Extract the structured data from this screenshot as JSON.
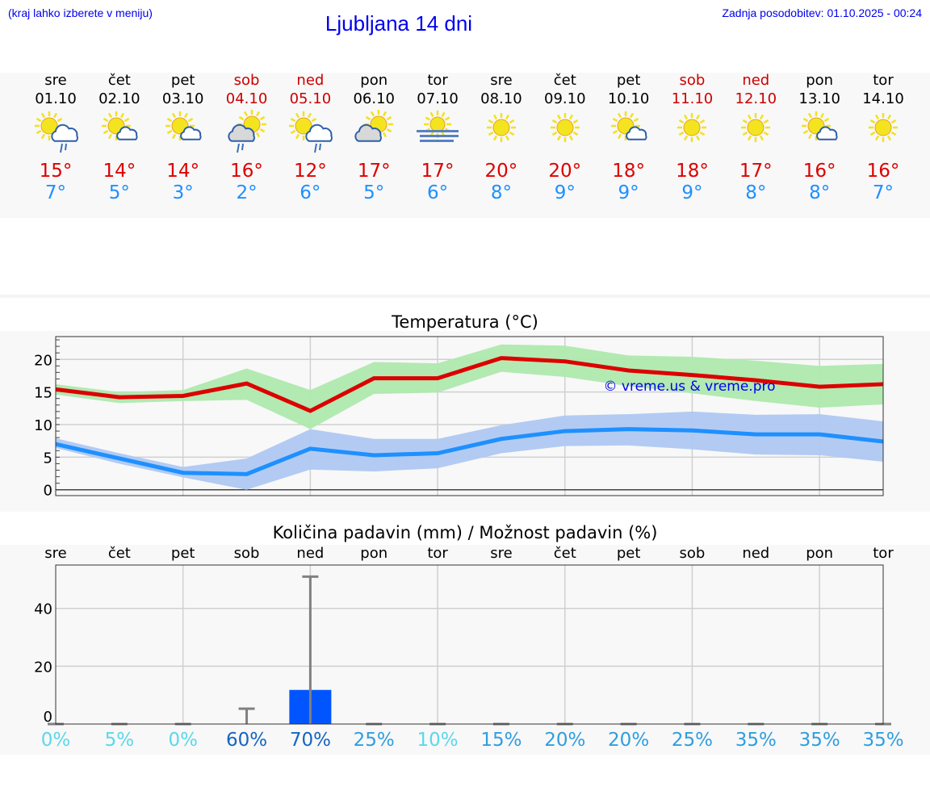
{
  "header": {
    "hint": "(kraj lahko izberete v meniju)",
    "title": "Ljubljana 14 dni",
    "updated": "Zadnja posodobitev: 01.10.2025 - 00:24"
  },
  "days": [
    {
      "name": "sre",
      "date": "01.10",
      "weekend": false,
      "icon": "sun-cloud-rain",
      "max": "15°",
      "min": "7°"
    },
    {
      "name": "čet",
      "date": "02.10",
      "weekend": false,
      "icon": "sun-small-cloud",
      "max": "14°",
      "min": "5°"
    },
    {
      "name": "pet",
      "date": "03.10",
      "weekend": false,
      "icon": "sun-small-cloud",
      "max": "14°",
      "min": "3°"
    },
    {
      "name": "sob",
      "date": "04.10",
      "weekend": true,
      "icon": "grey-cloud-sun-rain",
      "max": "16°",
      "min": "2°"
    },
    {
      "name": "ned",
      "date": "05.10",
      "weekend": true,
      "icon": "sun-cloud-rain",
      "max": "12°",
      "min": "6°"
    },
    {
      "name": "pon",
      "date": "06.10",
      "weekend": false,
      "icon": "grey-cloud-sun",
      "max": "17°",
      "min": "5°"
    },
    {
      "name": "tor",
      "date": "07.10",
      "weekend": false,
      "icon": "sun-fog",
      "max": "17°",
      "min": "6°"
    },
    {
      "name": "sre",
      "date": "08.10",
      "weekend": false,
      "icon": "sun",
      "max": "20°",
      "min": "8°"
    },
    {
      "name": "čet",
      "date": "09.10",
      "weekend": false,
      "icon": "sun",
      "max": "20°",
      "min": "9°"
    },
    {
      "name": "pet",
      "date": "10.10",
      "weekend": false,
      "icon": "sun-small-cloud",
      "max": "18°",
      "min": "9°"
    },
    {
      "name": "sob",
      "date": "11.10",
      "weekend": true,
      "icon": "sun",
      "max": "18°",
      "min": "9°"
    },
    {
      "name": "ned",
      "date": "12.10",
      "weekend": true,
      "icon": "sun",
      "max": "17°",
      "min": "8°"
    },
    {
      "name": "pon",
      "date": "13.10",
      "weekend": false,
      "icon": "sun-small-cloud",
      "max": "16°",
      "min": "8°"
    },
    {
      "name": "tor",
      "date": "14.10",
      "weekend": false,
      "icon": "sun",
      "max": "16°",
      "min": "7°"
    }
  ],
  "colors": {
    "max": "#dd0000",
    "min": "#1e90ff",
    "max_band": "#aee9ae",
    "min_band": "#afc8f2",
    "bar": "#0055ff",
    "whisker": "#808080",
    "pct_low": "#5ad8ea",
    "pct_mid": "#2e9ee0",
    "pct_high": "#1565c0",
    "weekend": "#cc0000"
  },
  "chart_data": [
    {
      "type": "line",
      "title": "Temperatura (°C)",
      "ylim": [
        -0.9,
        23.5
      ],
      "yticks": [
        0,
        5,
        10,
        15,
        20
      ],
      "grid": true,
      "watermark": "© vreme.us & vreme.pro",
      "x": [
        "01.10",
        "02.10",
        "03.10",
        "04.10",
        "05.10",
        "06.10",
        "07.10",
        "08.10",
        "09.10",
        "10.10",
        "11.10",
        "12.10",
        "13.10",
        "14.10"
      ],
      "series": [
        {
          "key": "max",
          "values": [
            15.4,
            14.2,
            14.4,
            16.3,
            12.1,
            17.1,
            17.1,
            20.2,
            19.7,
            18.3,
            17.6,
            16.8,
            15.8,
            16.2
          ],
          "upper": [
            16.2,
            15.0,
            15.3,
            18.6,
            15.3,
            19.6,
            19.4,
            22.3,
            22.1,
            20.6,
            20.4,
            19.8,
            19.0,
            19.3
          ],
          "lower": [
            14.6,
            13.3,
            13.6,
            13.8,
            9.3,
            14.7,
            14.9,
            18.1,
            17.3,
            15.9,
            14.8,
            13.6,
            12.6,
            13.1
          ]
        },
        {
          "key": "min",
          "values": [
            7.0,
            4.8,
            2.6,
            2.4,
            6.3,
            5.3,
            5.6,
            7.8,
            9.0,
            9.3,
            9.1,
            8.5,
            8.5,
            7.4
          ],
          "upper": [
            7.9,
            5.6,
            3.5,
            4.8,
            9.3,
            7.8,
            7.8,
            9.9,
            11.4,
            11.6,
            12.0,
            11.5,
            11.6,
            10.5
          ],
          "lower": [
            6.4,
            4.0,
            1.9,
            0.0,
            3.1,
            2.8,
            3.3,
            5.6,
            6.7,
            6.8,
            6.2,
            5.4,
            5.3,
            4.3
          ]
        }
      ]
    },
    {
      "type": "bar",
      "title": "Količina padavin (mm) / Možnost padavin (%)",
      "ylim": [
        0,
        55
      ],
      "yticks": [
        0,
        20,
        40
      ],
      "grid": true,
      "categories": [
        "sre",
        "čet",
        "pet",
        "sob",
        "ned",
        "pon",
        "tor",
        "sre",
        "čet",
        "pet",
        "sob",
        "ned",
        "pon",
        "tor"
      ],
      "values": [
        0,
        0,
        0,
        0,
        11.8,
        0,
        0,
        0,
        0,
        0,
        0,
        0,
        0,
        0
      ],
      "error_max": [
        0,
        0,
        0,
        5.3,
        51,
        0,
        0,
        0,
        0,
        0,
        0,
        0,
        0,
        0
      ],
      "probability": [
        "0%",
        "5%",
        "0%",
        "60%",
        "70%",
        "25%",
        "10%",
        "15%",
        "20%",
        "20%",
        "25%",
        "35%",
        "35%",
        "35%"
      ]
    }
  ]
}
